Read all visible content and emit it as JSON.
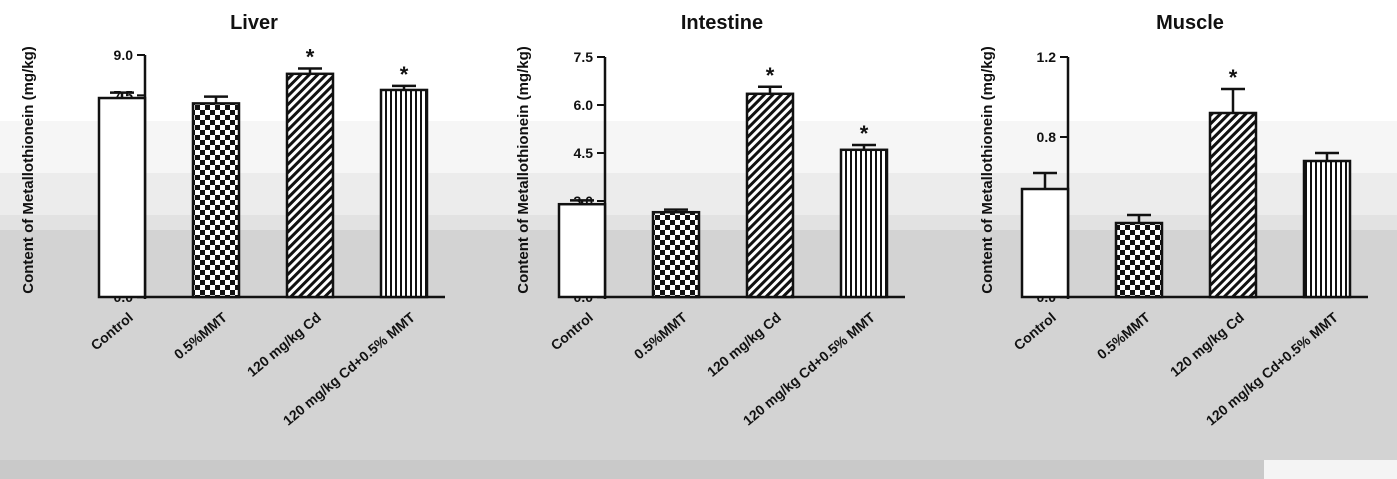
{
  "chart_data": [
    {
      "type": "bar",
      "title": "Liver",
      "ylabel": "Content of Metallothionein (mg/kg)",
      "categories": [
        "Control",
        "0.5%MMT",
        "120 mg/kg Cd",
        "120 mg/kg Cd+0.5% MMT"
      ],
      "values": [
        7.4,
        7.2,
        8.3,
        7.7
      ],
      "errors": [
        0.2,
        0.25,
        0.2,
        0.15
      ],
      "significant": [
        false,
        false,
        true,
        true
      ],
      "significance_marker": "*",
      "ylim": [
        0,
        9.0
      ],
      "yticks": [
        "0.0",
        "1.5",
        "3.0",
        "4.5",
        "6.0",
        "7.5",
        "9.0"
      ],
      "patterns": [
        "open",
        "checker",
        "diagonal",
        "vertical"
      ]
    },
    {
      "type": "bar",
      "title": "Intestine",
      "ylabel": "Content of Metallothionein (mg/kg)",
      "categories": [
        "Control",
        "0.5%MMT",
        "120 mg/kg Cd",
        "120 mg/kg Cd+0.5% MMT"
      ],
      "values": [
        2.9,
        2.65,
        6.35,
        4.6
      ],
      "errors": [
        0.12,
        0.08,
        0.22,
        0.15
      ],
      "significant": [
        false,
        false,
        true,
        true
      ],
      "significance_marker": "*",
      "ylim": [
        0,
        7.5
      ],
      "yticks": [
        "0.0",
        "1.5",
        "3.0",
        "4.5",
        "6.0",
        "7.5"
      ],
      "patterns": [
        "open",
        "checker",
        "diagonal",
        "vertical"
      ]
    },
    {
      "type": "bar",
      "title": "Muscle",
      "ylabel": "Content of Metallothionein (mg/kg)",
      "categories": [
        "Control",
        "0.5%MMT",
        "120 mg/kg Cd",
        "120 mg/kg Cd+0.5% MMT"
      ],
      "values": [
        0.54,
        0.37,
        0.92,
        0.68
      ],
      "errors": [
        0.08,
        0.04,
        0.12,
        0.04
      ],
      "significant": [
        false,
        false,
        true,
        false
      ],
      "significance_marker": "*",
      "ylim": [
        0,
        1.2
      ],
      "yticks": [
        "0.0",
        "0.4",
        "0.8",
        "1.2"
      ],
      "patterns": [
        "open",
        "checker",
        "diagonal",
        "vertical"
      ]
    }
  ]
}
